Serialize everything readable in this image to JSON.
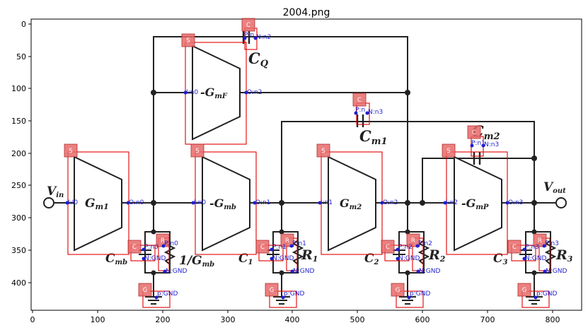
{
  "figure": {
    "title": "2004.png"
  },
  "axes": {
    "xticks": [
      "0",
      "100",
      "200",
      "300",
      "400",
      "500",
      "600",
      "700",
      "800"
    ],
    "yticks": [
      "0",
      "50",
      "100",
      "150",
      "200",
      "250",
      "300",
      "350",
      "400"
    ]
  },
  "labels": {
    "vin": "V",
    "vin_sub": "in",
    "vout": "V",
    "vout_sub": "out",
    "gm1": "G",
    "gm1_sub": "m1",
    "gmf": "-G",
    "gmf_sub": "mF",
    "gmb": "-G",
    "gmb_sub": "mb",
    "gm2": "G",
    "gm2_sub": "m2",
    "gmp": "-G",
    "gmp_sub": "mP",
    "cq": "C",
    "cq_sub": "Q",
    "cm1": "C",
    "cm1_sub": "m1",
    "cm2": "C",
    "cm2_sub": "m2",
    "cmb": "C",
    "cmb_sub": "mb",
    "rgmb": "1/G",
    "rgmb_sub": "mb",
    "c1": "C",
    "c1_sub": "1",
    "r1": "R",
    "r1_sub": "1",
    "c2": "C",
    "c2_sub": "2",
    "r2": "R",
    "r2_sub": "2",
    "c3": "C",
    "c3_sub": "3",
    "r3": "R",
    "r3_sub": "3"
  },
  "tags": {
    "s": "S",
    "c": "C",
    "r": "R",
    "g": "G"
  },
  "pins": {
    "cq_p": "P:n",
    "cq_n": "N:n2",
    "gmf_i": "I:n0",
    "gmf_o": "O:n2",
    "cm1_p": "P:n",
    "cm1_n": "N:n3",
    "cm2_p": "P:n1",
    "cm2_n": "N:n3",
    "gm1_i": "I:I0",
    "gm1_o": "O:n0",
    "gmb_i": "I:n0",
    "gmb_o": "O:n1",
    "gm2_i": "I:n1",
    "gm2_o": "O:n2",
    "gmp_i": "I:n2",
    "gmp_o": "O:n3",
    "r0_p": "P:n0",
    "r0_n": "N:GND",
    "c0_p": "P:n0",
    "c0_n": "N:GND",
    "r1_p": "P:n1",
    "r1_n": "N:GND",
    "c1_p": "P:n1",
    "c1_n": "N:GND",
    "r2_p": "P:n2",
    "r2_n": "N:GND",
    "c2_p": "P:n2",
    "c2_n": "N:GND",
    "r3_p": "P:n3",
    "r3_n": "N:GND",
    "c3_p": "P:n3",
    "c3_n": "N:GND",
    "g0": "p:GND",
    "g1": "p:GND",
    "g2": "p:GND",
    "g3": "p:GND"
  }
}
